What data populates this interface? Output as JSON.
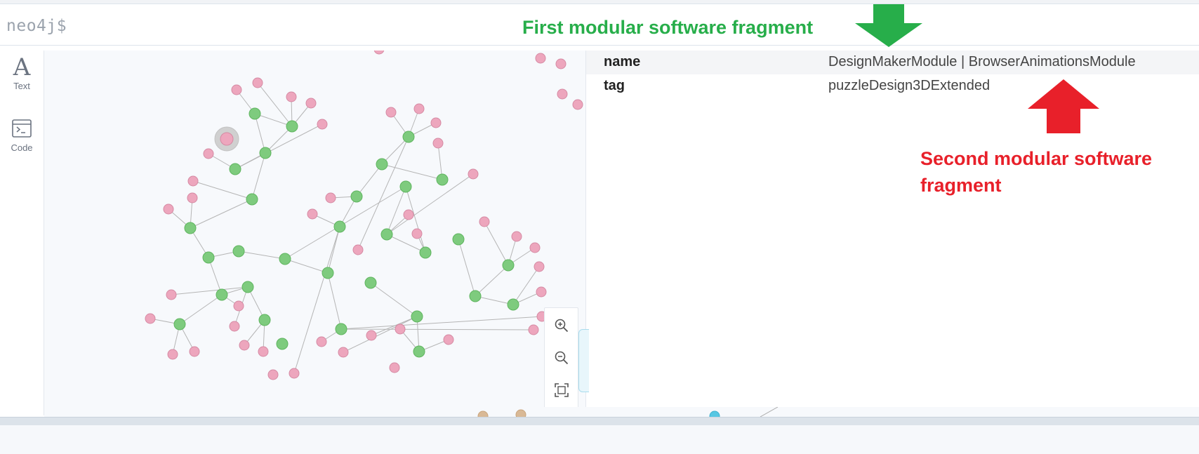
{
  "editor": {
    "prompt": "neo4j$"
  },
  "sidebar": {
    "items": [
      {
        "label": "Text",
        "icon": "text-icon"
      },
      {
        "label": "Code",
        "icon": "code-icon"
      }
    ]
  },
  "inspector": {
    "properties": [
      {
        "key": "name",
        "value": "DesignMakerModule | BrowserAnimationsModule"
      },
      {
        "key": "tag",
        "value": "puzzleDesign3DExtended"
      }
    ]
  },
  "zoom": {
    "buttons": [
      {
        "name": "zoom-in-icon"
      },
      {
        "name": "zoom-out-icon"
      },
      {
        "name": "fit-to-screen-icon"
      }
    ]
  },
  "annotations": {
    "first": {
      "text": "First modular software fragment",
      "color": "#27ae4a"
    },
    "second": {
      "text": "Second modular software fragment",
      "color": "#e8202a"
    }
  },
  "colors": {
    "module_node": "#7ecb7e",
    "tag_node": "#eda6bd",
    "selected_ring": "#d0d0d0",
    "canvas_bg": "#f7f9fc"
  }
}
